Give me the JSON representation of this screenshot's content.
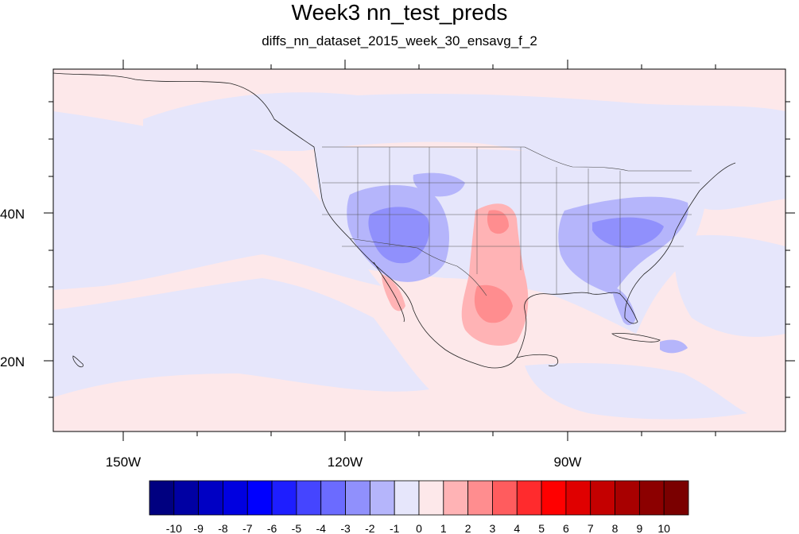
{
  "title": "Week3 nn_test_preds",
  "subtitle": "diffs_nn_dataset_2015_week_30_ensavg_f_2",
  "map": {
    "projection": "cylindrical-equidistant",
    "lon_range": [
      -159.5,
      -57.0
    ],
    "lat_range": [
      10.0,
      59.0
    ],
    "lat_labels": [
      "40N",
      "20N"
    ],
    "lon_labels": [
      "150W",
      "120W",
      "90W"
    ],
    "ocean_background_color": "#fde8ea",
    "negative_background_color": "#e6e6fb"
  },
  "colorbar": {
    "colors": [
      "#000080",
      "#0000a3",
      "#0000c4",
      "#0000e0",
      "#0000ff",
      "#1e1eff",
      "#4545ff",
      "#6b6bff",
      "#9090fc",
      "#b5b5fb",
      "#e6e6fb",
      "#fde8ea",
      "#ffb3b5",
      "#ff8d8f",
      "#ff5c5e",
      "#ff2b2d",
      "#ff0000",
      "#e00000",
      "#c40000",
      "#a80000",
      "#8c0000",
      "#7a0000"
    ],
    "labels": [
      "-10",
      "-9",
      "-8",
      "-7",
      "-6",
      "-5",
      "-4",
      "-3",
      "-2",
      "-1",
      "0",
      "1",
      "2",
      "3",
      "4",
      "5",
      "6",
      "7",
      "8",
      "9",
      "10"
    ]
  }
}
